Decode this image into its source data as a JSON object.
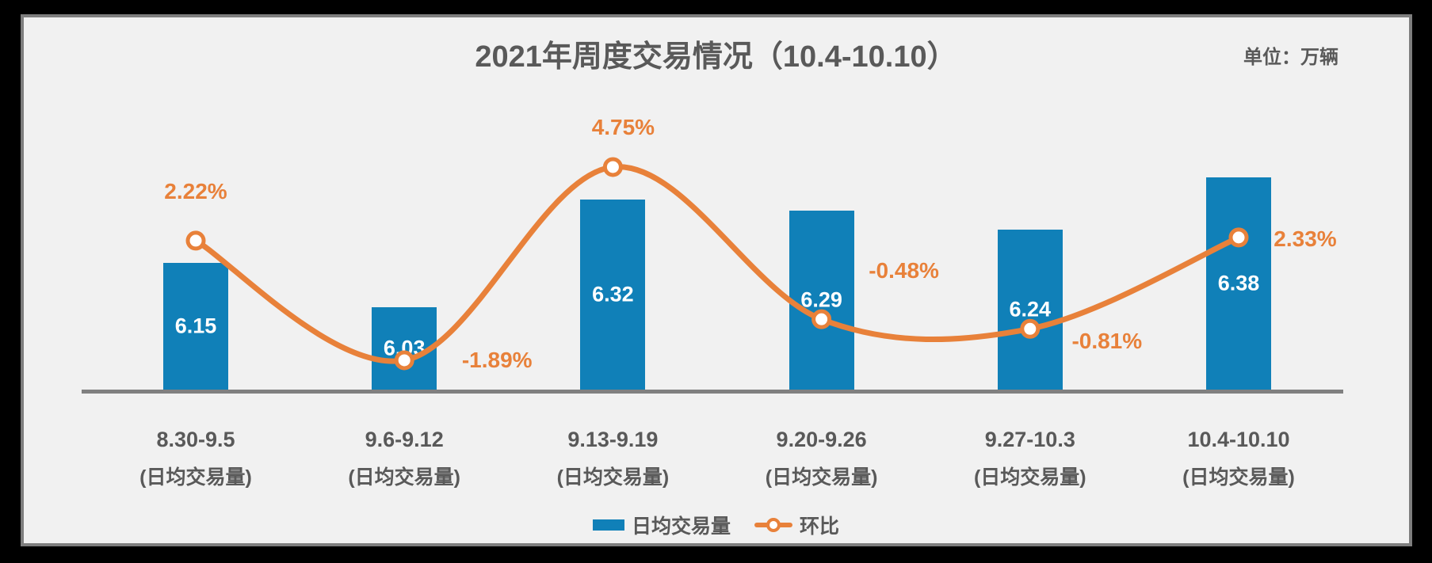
{
  "page": {
    "title": "2021年周度交易情况（10.4-10.10）",
    "unit_label": "单位：万辆"
  },
  "legend": {
    "bar_label": "日均交易量",
    "line_label": "环比"
  },
  "colors": {
    "bar": "#1080B8",
    "line": "#E8813A",
    "text": "#595959",
    "axis": "#808080",
    "panel_bg": "#F1F1F1",
    "canvas_bg": "#000000"
  },
  "chart_data": {
    "type": "bar",
    "subtype": "combo-bar-line",
    "title": "2021年周度交易情况（10.4-10.10）",
    "unit": "万辆",
    "categories": [
      "8.30-9.5",
      "9.6-9.12",
      "9.13-9.19",
      "9.20-9.26",
      "9.27-10.3",
      "10.4-10.10"
    ],
    "category_sublabel": "(日均交易量)",
    "series": [
      {
        "name": "日均交易量",
        "type": "bar",
        "values": [
          6.15,
          6.03,
          6.32,
          6.29,
          6.24,
          6.38
        ]
      },
      {
        "name": "环比",
        "type": "line",
        "unit": "%",
        "values": [
          2.22,
          -1.89,
          4.75,
          -0.48,
          -0.81,
          2.33
        ],
        "labels": [
          "2.22%",
          "-1.89%",
          "4.75%",
          "-0.48%",
          "-0.81%",
          "2.33%"
        ]
      }
    ],
    "legend_position": "bottom",
    "grid": false,
    "value_labels_inside_bars": true,
    "xaxis_visible": true,
    "yaxis_visible": false
  }
}
